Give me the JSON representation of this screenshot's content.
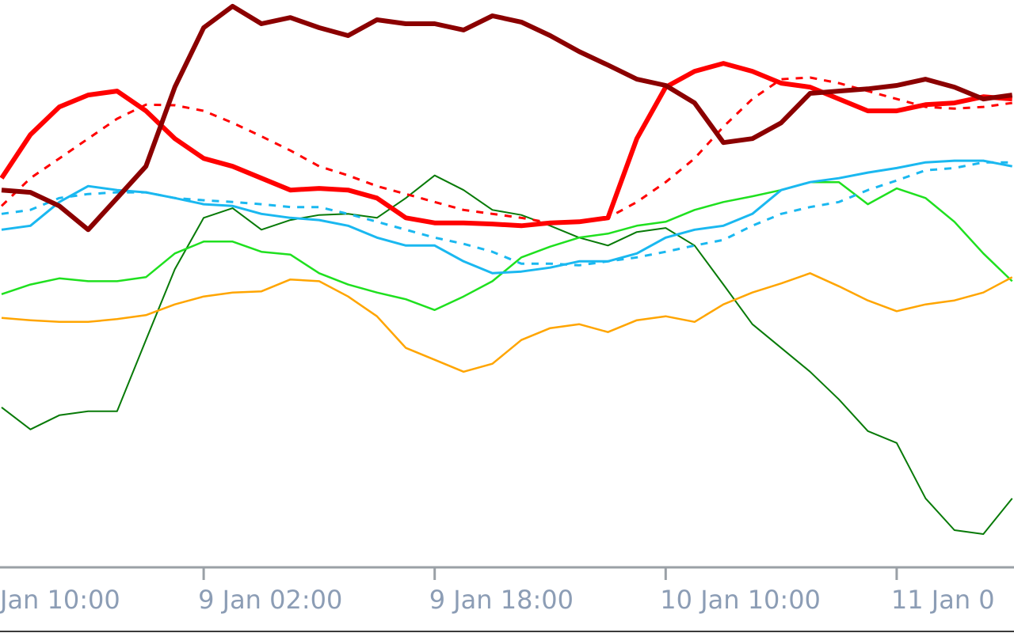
{
  "chart_data": {
    "type": "line",
    "categories": [
      "Jan 10:00",
      null,
      null,
      null,
      null,
      null,
      null,
      null,
      "9 Jan 02:00",
      null,
      null,
      null,
      null,
      null,
      null,
      null,
      "9 Jan 18:00",
      null,
      null,
      null,
      null,
      null,
      null,
      null,
      "10 Jan 10:00",
      null,
      null,
      null,
      null,
      null,
      null,
      null,
      "11 Jan 0",
      null,
      null,
      null,
      null
    ],
    "ylim": [
      0,
      100
    ],
    "series": [
      {
        "color": "#087a08",
        "line_width": 2,
        "dashed": false,
        "values": [
          null,
          28.0,
          24.1,
          26.6,
          27.3,
          27.3,
          39.9,
          52.4,
          61.5,
          63.2,
          59.4,
          61.1,
          62.0,
          62.2,
          61.5,
          65.0,
          69.0,
          66.4,
          62.9,
          62.0,
          60.1,
          58.0,
          56.6,
          59.0,
          59.7,
          56.6,
          49.7,
          42.7,
          38.5,
          34.3,
          29.4,
          23.8,
          21.7,
          11.9,
          6.3,
          5.6,
          11.9
        ]
      },
      {
        "color": "#1fe01f",
        "line_width": 2.5,
        "dashed": false,
        "values": [
          null,
          48.0,
          49.7,
          50.8,
          50.3,
          50.3,
          51.0,
          55.2,
          57.3,
          57.3,
          55.5,
          55.0,
          51.7,
          49.7,
          48.3,
          47.1,
          45.2,
          47.6,
          50.3,
          54.5,
          56.4,
          58.0,
          58.7,
          60.1,
          60.8,
          62.9,
          64.3,
          65.3,
          66.4,
          67.8,
          67.8,
          63.9,
          66.7,
          65.0,
          60.8,
          55.2,
          50.3
        ]
      },
      {
        "color": "#ffa500",
        "line_width": 2.5,
        "dashed": false,
        "values": [
          null,
          43.8,
          43.4,
          43.1,
          43.1,
          43.6,
          44.3,
          46.2,
          47.6,
          48.3,
          48.5,
          50.6,
          50.3,
          47.6,
          44.1,
          38.5,
          36.4,
          34.3,
          35.7,
          39.9,
          42.0,
          42.7,
          41.3,
          43.4,
          44.1,
          43.1,
          46.2,
          48.3,
          49.9,
          51.7,
          49.4,
          46.9,
          45.0,
          46.2,
          46.9,
          48.3,
          51.0
        ]
      },
      {
        "color": "#1ab8f0",
        "line_width": 3,
        "dashed": true,
        "values": [
          null,
          62.2,
          62.9,
          65.0,
          65.7,
          66.0,
          66.0,
          65.0,
          64.6,
          64.3,
          63.9,
          63.4,
          63.4,
          62.2,
          60.8,
          59.4,
          58.0,
          56.9,
          55.5,
          53.4,
          53.4,
          53.1,
          53.8,
          54.5,
          55.5,
          56.6,
          57.6,
          60.1,
          62.2,
          63.4,
          64.3,
          66.4,
          68.1,
          69.9,
          70.3,
          71.3,
          71.3
        ]
      },
      {
        "color": "#1ab8f0",
        "line_width": 3,
        "dashed": false,
        "values": [
          null,
          59.4,
          60.1,
          64.3,
          67.1,
          66.4,
          66.0,
          65.0,
          63.9,
          63.6,
          62.2,
          61.5,
          61.1,
          60.1,
          58.0,
          56.6,
          56.6,
          53.8,
          51.7,
          52.0,
          52.7,
          53.8,
          53.8,
          55.2,
          58.0,
          59.4,
          60.1,
          62.2,
          66.4,
          67.8,
          68.5,
          69.5,
          70.3,
          71.3,
          71.6,
          71.6,
          70.6
        ]
      },
      {
        "color": "#ff0000",
        "line_width": 3,
        "dashed": true,
        "values": [
          null,
          63.6,
          68.5,
          72.0,
          75.5,
          79.0,
          81.5,
          81.4,
          80.4,
          78.3,
          75.9,
          73.4,
          70.6,
          69.0,
          67.1,
          65.7,
          64.3,
          62.9,
          62.2,
          61.5,
          60.6,
          60.8,
          61.5,
          64.3,
          67.8,
          72.0,
          77.6,
          82.5,
          86.0,
          86.3,
          85.3,
          83.9,
          82.5,
          81.1,
          80.8,
          81.1,
          81.8
        ]
      },
      {
        "color": "#ff0000",
        "line_width": 6,
        "dashed": false,
        "values": [
          null,
          68.5,
          76.2,
          81.1,
          83.2,
          83.9,
          80.4,
          75.5,
          72.0,
          70.6,
          68.5,
          66.4,
          66.7,
          66.4,
          65.0,
          61.5,
          60.6,
          60.6,
          60.4,
          60.1,
          60.6,
          60.8,
          61.5,
          75.5,
          84.6,
          87.4,
          88.8,
          87.4,
          85.3,
          84.6,
          82.5,
          80.4,
          80.4,
          81.5,
          81.8,
          82.9,
          82.5
        ]
      },
      {
        "color": "#8b0000",
        "line_width": 6,
        "dashed": false,
        "values": [
          null,
          66.4,
          66.0,
          63.6,
          59.4,
          65.0,
          70.6,
          84.6,
          95.1,
          98.9,
          95.8,
          96.9,
          95.1,
          93.7,
          96.5,
          95.8,
          95.8,
          94.7,
          97.2,
          96.1,
          93.7,
          90.9,
          88.5,
          86.0,
          84.9,
          81.8,
          74.8,
          75.5,
          78.3,
          83.5,
          83.9,
          84.3,
          84.9,
          86.0,
          84.6,
          82.5,
          83.2
        ]
      }
    ]
  }
}
